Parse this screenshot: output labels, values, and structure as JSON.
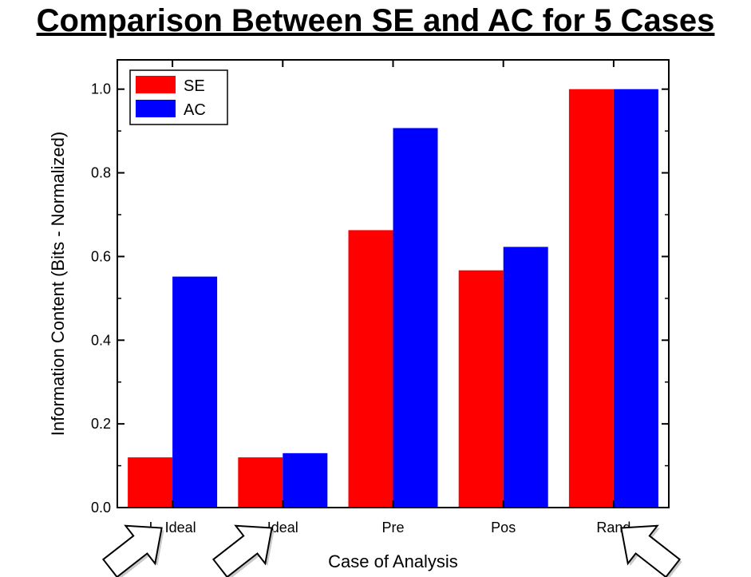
{
  "chart_data": {
    "type": "bar",
    "title": "Comparison Between SE and AC for 5 Cases",
    "xlabel": "Case of Analysis",
    "ylabel": "Information Content (Bits - Normalized)",
    "categories": [
      "L. Ideal",
      "Ideal",
      "Pre",
      "Pos",
      "Rand"
    ],
    "series": [
      {
        "name": "SE",
        "color": "#ff0000",
        "values": [
          0.12,
          0.12,
          0.663,
          0.567,
          1.0
        ]
      },
      {
        "name": "AC",
        "color": "#0000ff",
        "values": [
          0.552,
          0.13,
          0.907,
          0.623,
          1.0
        ]
      }
    ],
    "ylim": [
      0,
      1.07
    ],
    "yticks": [
      "0.0",
      "0.2",
      "0.4",
      "0.6",
      "0.8",
      "1.0"
    ],
    "grid": false,
    "legend": "top-left",
    "annotations": [
      "arrow-icon",
      "arrow-icon",
      "arrow-icon"
    ]
  }
}
